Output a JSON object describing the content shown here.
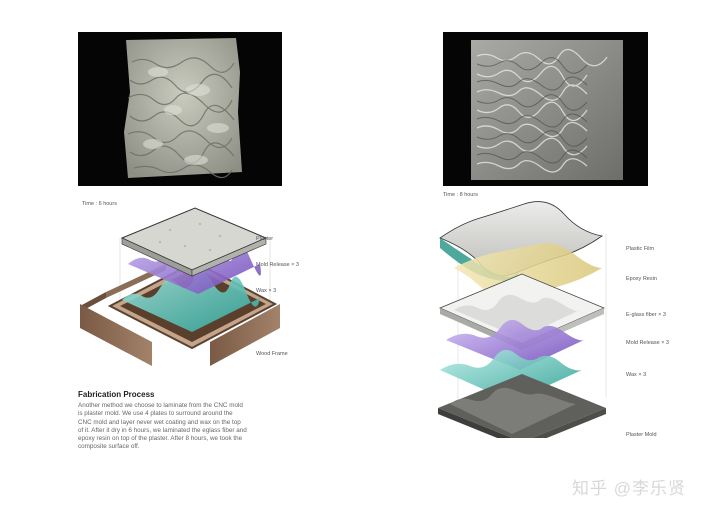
{
  "left": {
    "time_caption": "Time : 6 hours",
    "labels": [
      "Plaster",
      "Mold Release × 3",
      "Wax × 3",
      "Wood Frame"
    ]
  },
  "right": {
    "time_caption": "Time : 8 hours",
    "labels": [
      "Plastic Film",
      "Epoxy Resin",
      "E-glass fiber × 3",
      "Mold Release × 3",
      "Wax × 3",
      "Plaster Mold"
    ]
  },
  "text": {
    "heading": "Fabrication Process",
    "lines": [
      "Another method we choose to laminate from the CNC mold",
      "is plaster mold. We use 4 plates to surround around the",
      "CNC mold and layer never wet coating and wax on the top",
      "of it. After it dry in 6 hours, we laminated the eglass fiber and",
      "epoxy resin on top of the plaster. After 8 hours, we took the",
      "composite surface off."
    ]
  },
  "watermark": "知乎 @李乐贤"
}
